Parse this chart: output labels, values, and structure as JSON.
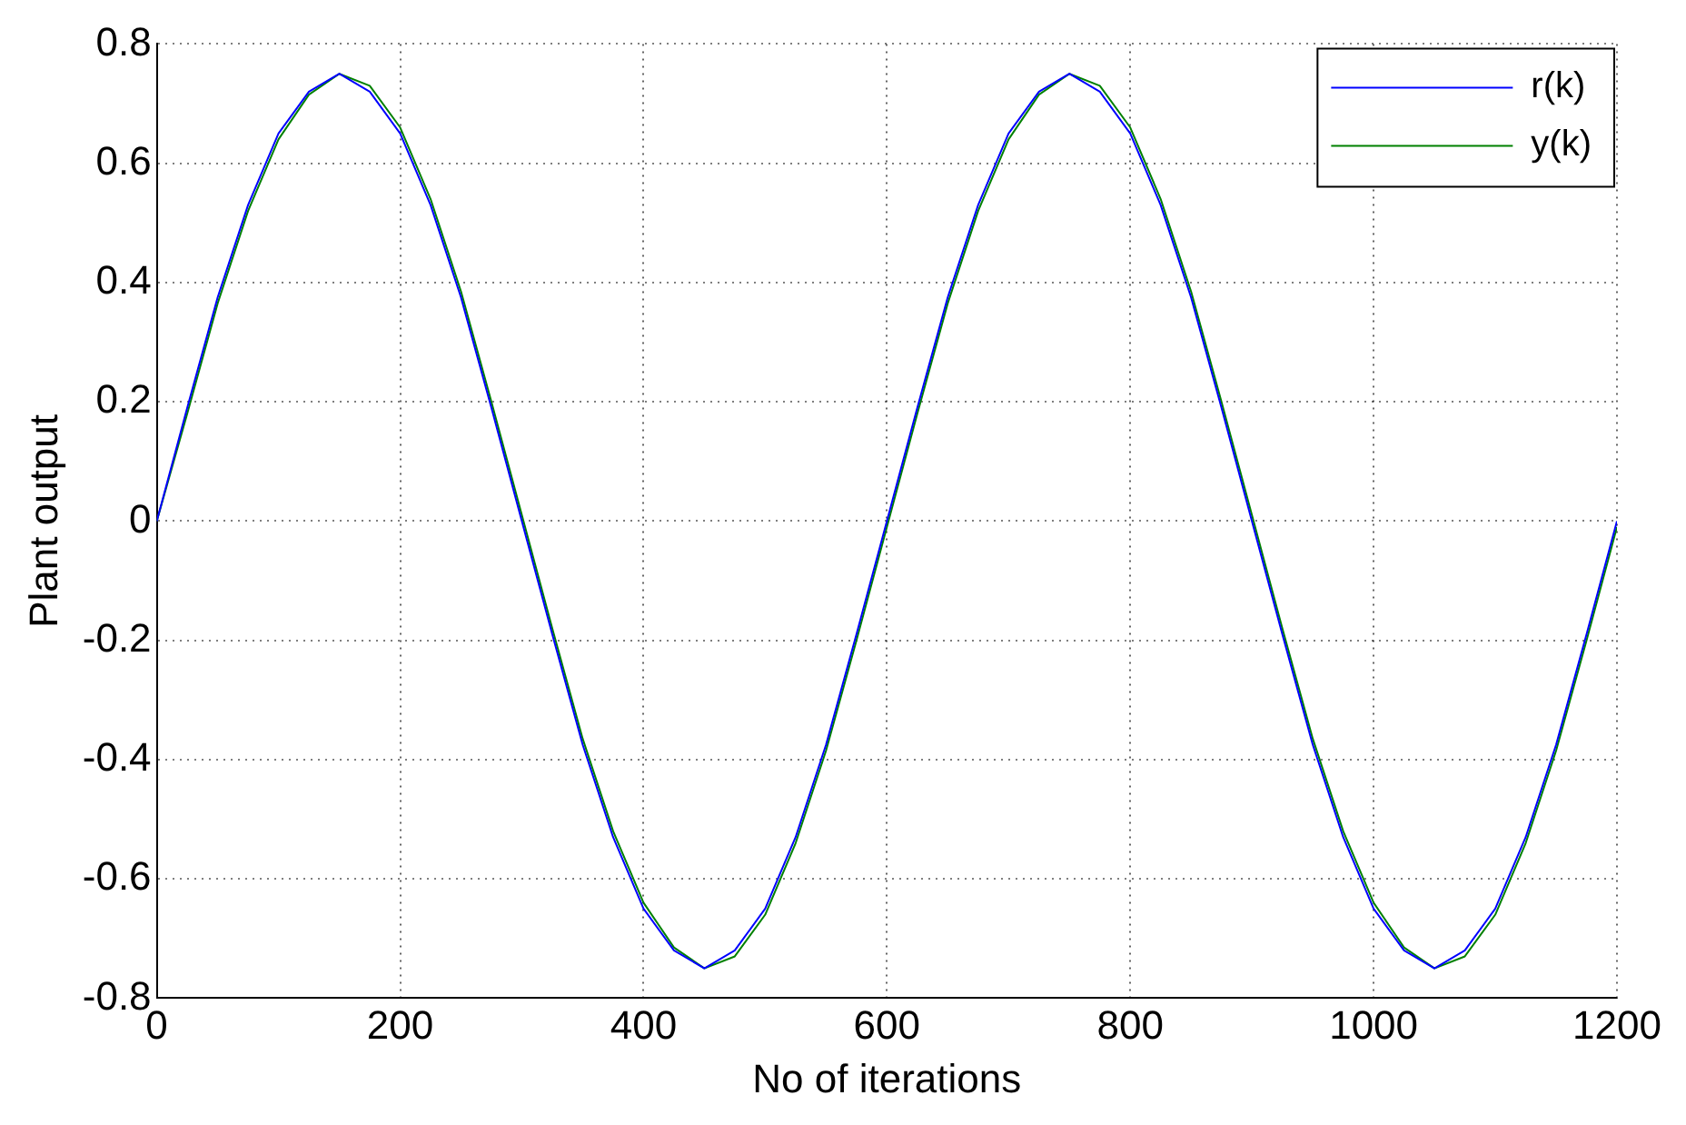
{
  "chart_data": {
    "type": "line",
    "xlabel": "No of iterations",
    "ylabel": "Plant output",
    "x": [
      0,
      25,
      50,
      75,
      100,
      125,
      150,
      175,
      200,
      225,
      250,
      275,
      300,
      325,
      350,
      375,
      400,
      425,
      450,
      475,
      500,
      525,
      550,
      575,
      600,
      625,
      650,
      675,
      700,
      725,
      750,
      775,
      800,
      825,
      850,
      875,
      900,
      925,
      950,
      975,
      1000,
      1025,
      1050,
      1075,
      1100,
      1125,
      1150,
      1175,
      1200
    ],
    "series": [
      {
        "name": "r(k)",
        "color": "#0000ff",
        "values": [
          0,
          0.19,
          0.375,
          0.53,
          0.65,
          0.72,
          0.75,
          0.72,
          0.65,
          0.53,
          0.375,
          0.19,
          0,
          -0.19,
          -0.375,
          -0.53,
          -0.65,
          -0.72,
          -0.75,
          -0.72,
          -0.65,
          -0.53,
          -0.375,
          -0.19,
          0,
          0.19,
          0.375,
          0.53,
          0.65,
          0.72,
          0.75,
          0.72,
          0.65,
          0.53,
          0.375,
          0.19,
          0,
          -0.19,
          -0.375,
          -0.53,
          -0.65,
          -0.72,
          -0.75,
          -0.72,
          -0.65,
          -0.53,
          -0.375,
          -0.19,
          0
        ]
      },
      {
        "name": "y(k)",
        "color": "#008000",
        "values": [
          0,
          0.18,
          0.365,
          0.52,
          0.64,
          0.715,
          0.75,
          0.73,
          0.66,
          0.54,
          0.385,
          0.2,
          0.01,
          -0.18,
          -0.365,
          -0.52,
          -0.64,
          -0.715,
          -0.75,
          -0.73,
          -0.66,
          -0.54,
          -0.385,
          -0.2,
          -0.01,
          0.18,
          0.365,
          0.52,
          0.64,
          0.715,
          0.75,
          0.73,
          0.66,
          0.54,
          0.385,
          0.2,
          0.01,
          -0.18,
          -0.365,
          -0.52,
          -0.64,
          -0.715,
          -0.75,
          -0.73,
          -0.66,
          -0.54,
          -0.385,
          -0.2,
          -0.01
        ]
      }
    ],
    "xlim": [
      0,
      1200
    ],
    "xticks": [
      0,
      200,
      400,
      600,
      800,
      1000,
      1200
    ],
    "ylim": [
      -0.8,
      0.8
    ],
    "yticks": [
      -0.8,
      -0.6,
      -0.4,
      -0.2,
      0,
      0.2,
      0.4,
      0.6,
      0.8
    ],
    "grid": true,
    "legend": "top right",
    "marker": "none",
    "line_style": "solid"
  }
}
